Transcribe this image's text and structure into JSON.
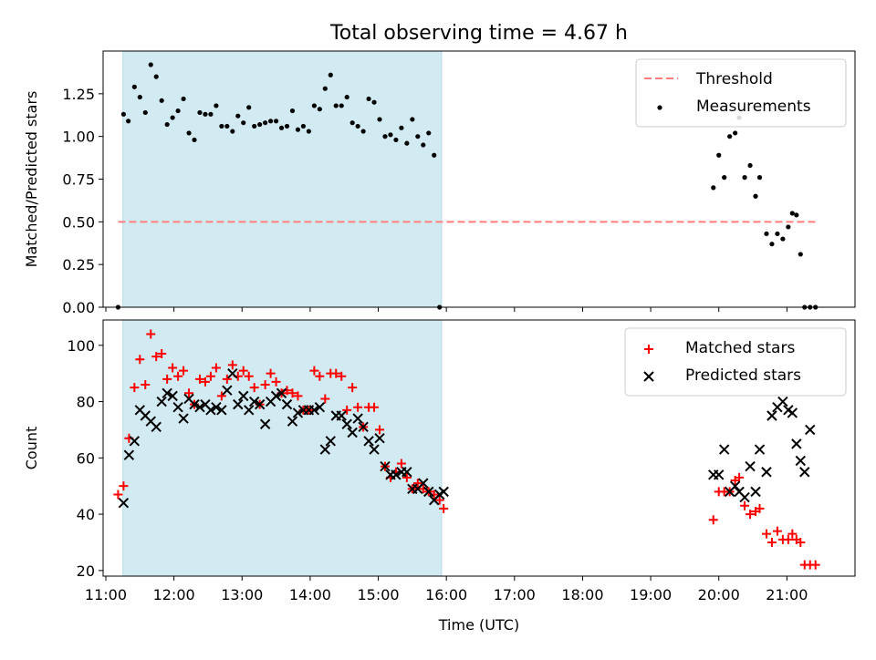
{
  "chart_data": {
    "title": "Total observing time = 4.67 h",
    "xlabel": "Time (UTC)",
    "x_ticks": [
      "11:00",
      "12:00",
      "13:00",
      "14:00",
      "15:00",
      "16:00",
      "17:00",
      "18:00",
      "19:00",
      "20:00",
      "21:00"
    ],
    "x_range_hours": [
      10.96,
      22.0
    ],
    "shaded_interval_hours": [
      11.25,
      15.93
    ],
    "shade_color": "#add8e6",
    "panels": [
      {
        "type": "scatter",
        "ylabel": "Matched/Predicted stars",
        "ylim": [
          0,
          1.5
        ],
        "y_ticks": [
          "0.00",
          "0.25",
          "0.50",
          "0.75",
          "1.00",
          "1.25"
        ],
        "threshold": {
          "name": "Threshold",
          "value": 0.5,
          "x": [
            11.18,
            21.44
          ],
          "color": "#ff7f7f"
        },
        "legend": {
          "placement": "upper right",
          "entries": [
            "Threshold",
            "Measurements"
          ]
        },
        "series": [
          {
            "name": "Measurements",
            "color": "#000000",
            "x": [
              11.18,
              11.26,
              11.33,
              11.42,
              11.5,
              11.58,
              11.66,
              11.74,
              11.82,
              11.9,
              11.98,
              12.06,
              12.14,
              12.22,
              12.3,
              12.38,
              12.46,
              12.54,
              12.62,
              12.7,
              12.78,
              12.86,
              12.94,
              13.02,
              13.1,
              13.18,
              13.26,
              13.34,
              13.42,
              13.5,
              13.58,
              13.66,
              13.74,
              13.82,
              13.9,
              13.98,
              14.06,
              14.14,
              14.22,
              14.3,
              14.38,
              14.46,
              14.54,
              14.62,
              14.7,
              14.78,
              14.86,
              14.94,
              15.02,
              15.1,
              15.18,
              15.26,
              15.34,
              15.42,
              15.5,
              15.58,
              15.66,
              15.74,
              15.82,
              15.9,
              19.92,
              20.0,
              20.08,
              20.16,
              20.24,
              20.3,
              20.38,
              20.46,
              20.54,
              20.6,
              20.7,
              20.78,
              20.86,
              20.94,
              21.02,
              21.08,
              21.14,
              21.2,
              21.26,
              21.34,
              21.42
            ],
            "y": [
              0.0,
              1.13,
              1.09,
              1.29,
              1.23,
              1.14,
              1.42,
              1.35,
              1.21,
              1.07,
              1.11,
              1.15,
              1.22,
              1.02,
              0.98,
              1.14,
              1.13,
              1.13,
              1.18,
              1.06,
              1.06,
              1.03,
              1.12,
              1.08,
              1.17,
              1.06,
              1.07,
              1.08,
              1.09,
              1.09,
              1.05,
              1.06,
              1.15,
              1.04,
              1.06,
              1.03,
              1.18,
              1.16,
              1.28,
              1.36,
              1.18,
              1.18,
              1.23,
              1.08,
              1.06,
              1.03,
              1.22,
              1.2,
              1.1,
              1.0,
              1.01,
              0.98,
              1.05,
              0.96,
              1.1,
              1.0,
              0.95,
              1.02,
              0.89,
              0.0,
              0.7,
              0.89,
              0.76,
              1.0,
              1.02,
              1.11,
              0.76,
              0.83,
              0.65,
              0.76,
              0.43,
              0.37,
              0.43,
              0.4,
              0.47,
              0.55,
              0.54,
              0.31,
              0.0,
              0.0,
              0.0
            ]
          }
        ]
      },
      {
        "type": "scatter",
        "ylabel": "Count",
        "ylim": [
          18,
          109
        ],
        "y_ticks": [
          "20",
          "40",
          "60",
          "80",
          "100"
        ],
        "legend": {
          "placement": "upper right",
          "entries": [
            "Matched stars",
            "Predicted stars"
          ]
        },
        "series": [
          {
            "name": "Matched stars",
            "marker": "plus",
            "color": "#ff0000",
            "x": [
              11.18,
              11.26,
              11.34,
              11.42,
              11.5,
              11.58,
              11.66,
              11.74,
              11.82,
              11.9,
              11.98,
              12.06,
              12.14,
              12.22,
              12.3,
              12.38,
              12.46,
              12.54,
              12.62,
              12.7,
              12.78,
              12.86,
              12.94,
              13.02,
              13.1,
              13.18,
              13.26,
              13.34,
              13.42,
              13.5,
              13.58,
              13.66,
              13.74,
              13.82,
              13.9,
              13.98,
              14.06,
              14.14,
              14.22,
              14.3,
              14.38,
              14.46,
              14.54,
              14.62,
              14.7,
              14.78,
              14.86,
              14.94,
              15.02,
              15.1,
              15.18,
              15.26,
              15.34,
              15.42,
              15.5,
              15.58,
              15.66,
              15.74,
              15.82,
              15.9,
              15.96,
              19.92,
              20.0,
              20.08,
              20.16,
              20.24,
              20.3,
              20.38,
              20.46,
              20.54,
              20.6,
              20.7,
              20.78,
              20.86,
              20.94,
              21.02,
              21.08,
              21.14,
              21.2,
              21.26,
              21.34,
              21.42
            ],
            "y": [
              47,
              50,
              67,
              85,
              95,
              86,
              104,
              96,
              97,
              88,
              92,
              89,
              91,
              83,
              79,
              88,
              87,
              89,
              92,
              82,
              88,
              93,
              89,
              91,
              89,
              85,
              79,
              86,
              90,
              87,
              83,
              84,
              83,
              82,
              77,
              77,
              91,
              89,
              81,
              90,
              90,
              89,
              77,
              85,
              78,
              71,
              78,
              78,
              70,
              57,
              53,
              55,
              58,
              53,
              49,
              51,
              49,
              48,
              47,
              45,
              42,
              38,
              48,
              48,
              48,
              52,
              53,
              43,
              40,
              41,
              42,
              33,
              30,
              34,
              31,
              31,
              33,
              31,
              30,
              22,
              22,
              22
            ]
          },
          {
            "name": "Predicted stars",
            "marker": "x",
            "color": "#000000",
            "x": [
              11.26,
              11.34,
              11.42,
              11.5,
              11.58,
              11.66,
              11.74,
              11.82,
              11.9,
              11.98,
              12.06,
              12.14,
              12.22,
              12.3,
              12.38,
              12.46,
              12.54,
              12.62,
              12.7,
              12.78,
              12.86,
              12.94,
              13.02,
              13.1,
              13.18,
              13.26,
              13.34,
              13.42,
              13.5,
              13.58,
              13.66,
              13.74,
              13.82,
              13.9,
              13.98,
              14.06,
              14.14,
              14.22,
              14.3,
              14.38,
              14.46,
              14.54,
              14.62,
              14.7,
              14.78,
              14.86,
              14.94,
              15.02,
              15.1,
              15.18,
              15.26,
              15.34,
              15.42,
              15.5,
              15.58,
              15.66,
              15.74,
              15.82,
              15.9,
              15.96,
              19.92,
              20.0,
              20.08,
              20.16,
              20.24,
              20.3,
              20.38,
              20.46,
              20.54,
              20.6,
              20.7,
              20.78,
              20.86,
              20.94,
              21.02,
              21.08,
              21.14,
              21.2,
              21.26,
              21.34
            ],
            "y": [
              44,
              61,
              66,
              77,
              75,
              73,
              71,
              80,
              83,
              82,
              78,
              74,
              81,
              79,
              78,
              79,
              77,
              78,
              77,
              84,
              90,
              79,
              82,
              77,
              80,
              79,
              72,
              80,
              82,
              83,
              79,
              73,
              76,
              77,
              77,
              77,
              78,
              63,
              66,
              75,
              75,
              72,
              69,
              74,
              71,
              66,
              63,
              67,
              57,
              54,
              54,
              55,
              55,
              49,
              49,
              51,
              48,
              45,
              47,
              48,
              54,
              54,
              63,
              48,
              50,
              48,
              46,
              57,
              48,
              63,
              55,
              75,
              78,
              80,
              77,
              76,
              65,
              59,
              55,
              70
            ]
          }
        ]
      }
    ]
  }
}
